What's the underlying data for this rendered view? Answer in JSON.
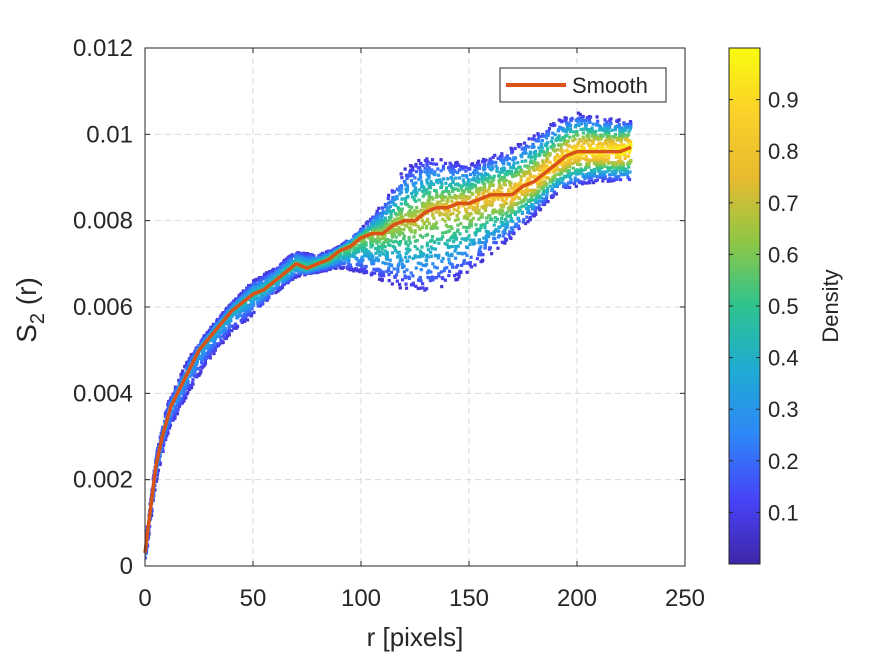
{
  "chart_data": {
    "type": "scatter",
    "xlabel": "r [pixels]",
    "ylabel_main": "S",
    "ylabel_sub": "2",
    "ylabel_tail": " (r)",
    "xlim": [
      0,
      250
    ],
    "ylim": [
      0,
      0.012
    ],
    "x_ticks": [
      0,
      50,
      100,
      150,
      200,
      250
    ],
    "x_tick_labels": [
      "0",
      "50",
      "100",
      "150",
      "200",
      "250"
    ],
    "y_ticks": [
      0,
      0.002,
      0.004,
      0.006,
      0.008,
      0.01,
      0.012
    ],
    "y_tick_labels": [
      "0",
      "0.002",
      "0.004",
      "0.006",
      "0.008",
      "0.01",
      "0.012"
    ],
    "grid": true,
    "legend": {
      "placement": "top-right",
      "entries": [
        "Smooth"
      ]
    },
    "colorbar": {
      "label": "Density",
      "range": [
        0,
        1
      ],
      "ticks": [
        0.1,
        0.2,
        0.3,
        0.4,
        0.5,
        0.6,
        0.7,
        0.8,
        0.9
      ],
      "tick_labels": [
        "0.1",
        "0.2",
        "0.3",
        "0.4",
        "0.5",
        "0.6",
        "0.7",
        "0.8",
        "0.9"
      ],
      "colormap": [
        "#3e26a8",
        "#4743f8",
        "#2e87f7",
        "#1fabd3",
        "#2ec38f",
        "#8fc745",
        "#e9ba2f",
        "#fbd12a",
        "#f9fb0e"
      ]
    },
    "series": [
      {
        "name": "Smooth",
        "color": "#d95319",
        "x": [
          0,
          2,
          5,
          8,
          12,
          16,
          20,
          25,
          30,
          35,
          40,
          45,
          50,
          55,
          60,
          65,
          70,
          75,
          80,
          85,
          90,
          95,
          100,
          105,
          110,
          115,
          120,
          125,
          130,
          135,
          140,
          145,
          150,
          155,
          160,
          165,
          170,
          175,
          180,
          185,
          190,
          195,
          200,
          205,
          210,
          215,
          220,
          225
        ],
        "y": [
          0.0003,
          0.0011,
          0.0023,
          0.003,
          0.0037,
          0.0041,
          0.0045,
          0.005,
          0.0053,
          0.0056,
          0.0059,
          0.0061,
          0.0063,
          0.0064,
          0.0066,
          0.0068,
          0.007,
          0.0069,
          0.007,
          0.0071,
          0.0073,
          0.0074,
          0.0076,
          0.0077,
          0.0077,
          0.0079,
          0.008,
          0.008,
          0.0082,
          0.0083,
          0.0083,
          0.0084,
          0.0084,
          0.0085,
          0.0086,
          0.0086,
          0.0086,
          0.0088,
          0.0089,
          0.0091,
          0.0093,
          0.0095,
          0.0096,
          0.0096,
          0.0096,
          0.0096,
          0.0096,
          0.0097
        ]
      }
    ],
    "density_band": {
      "x": [
        0,
        5,
        10,
        20,
        30,
        40,
        50,
        60,
        70,
        80,
        90,
        100,
        110,
        120,
        130,
        140,
        150,
        160,
        170,
        180,
        190,
        200,
        210,
        225
      ],
      "y_low": [
        0.0,
        0.0019,
        0.003,
        0.004,
        0.0048,
        0.0054,
        0.0058,
        0.0063,
        0.0067,
        0.0068,
        0.0069,
        0.0068,
        0.0066,
        0.0064,
        0.0063,
        0.0065,
        0.0068,
        0.0072,
        0.0076,
        0.0081,
        0.0086,
        0.0088,
        0.0089,
        0.0089
      ],
      "y_high": [
        0.0005,
        0.0025,
        0.0037,
        0.0048,
        0.0055,
        0.0061,
        0.0066,
        0.0069,
        0.0073,
        0.0072,
        0.0074,
        0.0078,
        0.0084,
        0.0092,
        0.0095,
        0.0094,
        0.0093,
        0.0095,
        0.0097,
        0.01,
        0.0103,
        0.0105,
        0.0104,
        0.0103
      ]
    }
  }
}
